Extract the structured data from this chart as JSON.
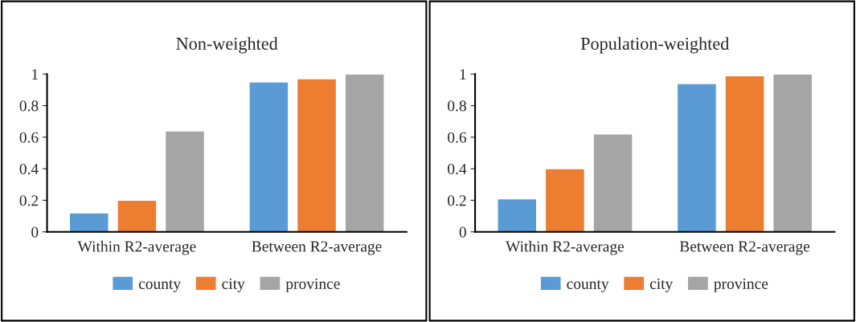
{
  "chart_data": [
    {
      "type": "bar",
      "title": "Non-weighted",
      "categories": [
        "Within R2-average",
        "Between R2-average"
      ],
      "ylim": [
        0,
        1
      ],
      "yticks": [
        0,
        0.2,
        0.4,
        0.6,
        0.8,
        1
      ],
      "grid": false,
      "legend": "bottom",
      "series": [
        {
          "name": "county",
          "color": "#5b9bd5",
          "values": [
            0.12,
            0.95
          ]
        },
        {
          "name": "city",
          "color": "#ed7d31",
          "values": [
            0.2,
            0.97
          ]
        },
        {
          "name": "province",
          "color": "#a5a5a5",
          "values": [
            0.64,
            1.0
          ]
        }
      ]
    },
    {
      "type": "bar",
      "title": "Population-weighted",
      "categories": [
        "Within R2-average",
        "Between R2-average"
      ],
      "ylim": [
        0,
        1
      ],
      "yticks": [
        0,
        0.2,
        0.4,
        0.6,
        0.8,
        1
      ],
      "grid": false,
      "legend": "bottom",
      "series": [
        {
          "name": "county",
          "color": "#5b9bd5",
          "values": [
            0.21,
            0.94
          ]
        },
        {
          "name": "city",
          "color": "#ed7d31",
          "values": [
            0.4,
            0.99
          ]
        },
        {
          "name": "province",
          "color": "#a5a5a5",
          "values": [
            0.62,
            1.0
          ]
        }
      ]
    }
  ]
}
